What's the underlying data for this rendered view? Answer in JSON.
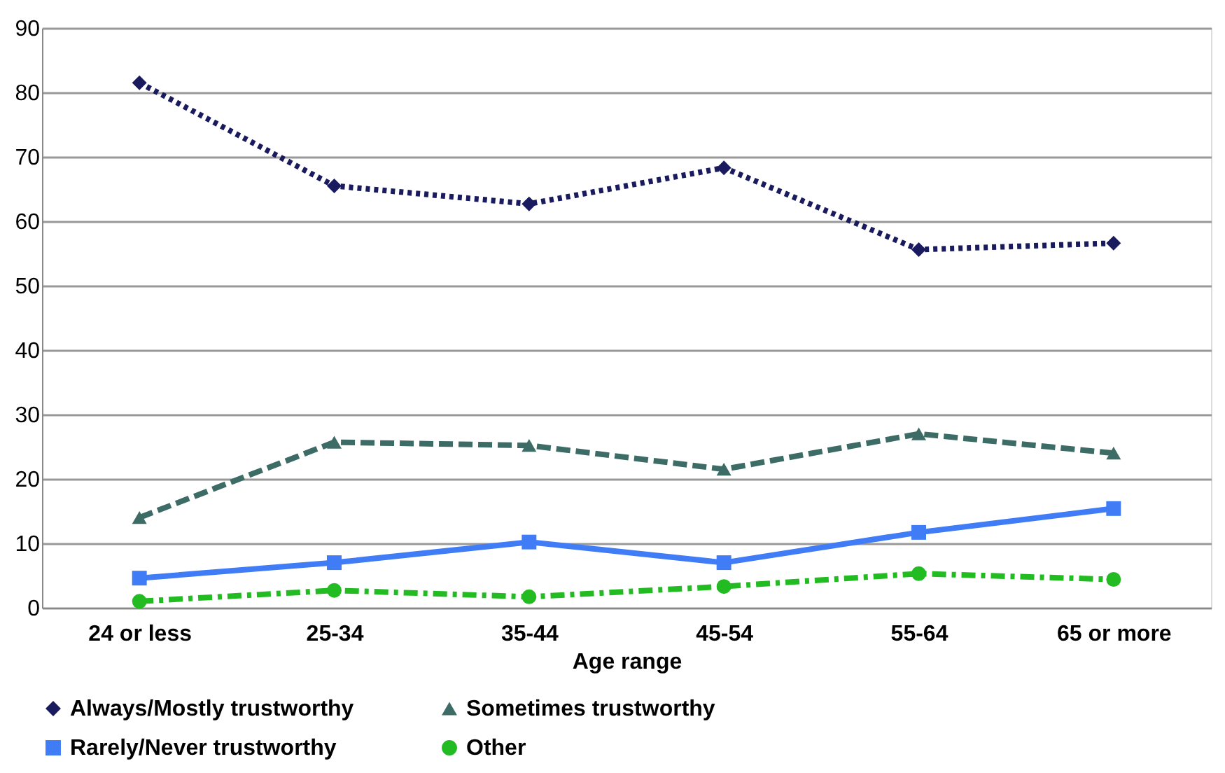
{
  "chart_data": {
    "type": "line",
    "xlabel": "Age range",
    "categories": [
      "24 or less",
      "25-34",
      "35-44",
      "45-54",
      "55-64",
      "65 or more"
    ],
    "series": [
      {
        "name": "Always/Mostly trustworthy",
        "color": "#1a1a5e",
        "marker": "diamond",
        "line_style": "dotted",
        "values": [
          81.5,
          65.5,
          62.7,
          68.3,
          55.6,
          56.6
        ]
      },
      {
        "name": "Sometimes trustworthy",
        "color": "#3d6b66",
        "marker": "triangle",
        "line_style": "dashed",
        "values": [
          14,
          25.7,
          25.2,
          21.5,
          27,
          24
        ]
      },
      {
        "name": "Rarely/Never trustworthy",
        "color": "#3f7cf5",
        "marker": "square",
        "line_style": "solid",
        "values": [
          4.6,
          7,
          10.2,
          7,
          11.7,
          15.4
        ]
      },
      {
        "name": "Other",
        "color": "#22bb22",
        "marker": "circle",
        "line_style": "dashdot",
        "values": [
          1,
          2.7,
          1.7,
          3.3,
          5.3,
          4.4
        ]
      }
    ],
    "ylim": [
      0,
      90
    ],
    "yticks": [
      0,
      10,
      20,
      30,
      40,
      50,
      60,
      70,
      80,
      90
    ],
    "grid": "y",
    "legend": "bottom"
  }
}
